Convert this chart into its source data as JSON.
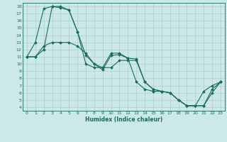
{
  "xlabel": "Humidex (Indice chaleur)",
  "xlim": [
    -0.5,
    23.5
  ],
  "ylim": [
    3.5,
    18.5
  ],
  "xticks": [
    0,
    1,
    2,
    3,
    4,
    5,
    6,
    7,
    8,
    9,
    10,
    11,
    12,
    13,
    14,
    15,
    16,
    17,
    18,
    19,
    20,
    21,
    22,
    23
  ],
  "yticks": [
    4,
    5,
    6,
    7,
    8,
    9,
    10,
    11,
    12,
    13,
    14,
    15,
    16,
    17,
    18
  ],
  "bg_color": "#cce8e8",
  "line_color": "#1a6b5a",
  "grid_color": "#aacfcf",
  "lines": [
    {
      "x": [
        0,
        1,
        2,
        3,
        4,
        5,
        6,
        7,
        8,
        9,
        10,
        11,
        12,
        13,
        14,
        15,
        16,
        17,
        18,
        19,
        20,
        21,
        22,
        23
      ],
      "y": [
        11,
        13,
        17.7,
        18,
        18,
        17.5,
        14.5,
        11.2,
        10,
        9.2,
        11.2,
        11.3,
        10.8,
        7.5,
        6.5,
        6.2,
        6.2,
        6.0,
        5.0,
        4.2,
        4.2,
        6.2,
        7.0,
        7.5
      ]
    },
    {
      "x": [
        0,
        1,
        2,
        3,
        4,
        5,
        6,
        7,
        8,
        9,
        10,
        11,
        12,
        13,
        14,
        15,
        16,
        17,
        18,
        19,
        20,
        21,
        22,
        23
      ],
      "y": [
        11,
        11,
        12.5,
        13,
        13,
        13,
        12.5,
        11.5,
        10,
        9.5,
        9.5,
        10.5,
        10.5,
        10.5,
        7.5,
        6.5,
        6.2,
        6.0,
        5.0,
        4.2,
        4.2,
        4.2,
        6.5,
        7.5
      ]
    },
    {
      "x": [
        0,
        1,
        2,
        3,
        4,
        5,
        6,
        7,
        8,
        9,
        10,
        11,
        12,
        13,
        14,
        15,
        16,
        17,
        18,
        19,
        20,
        21,
        22,
        23
      ],
      "y": [
        11,
        11,
        12.0,
        18,
        17.8,
        17.5,
        14.5,
        10.0,
        9.5,
        9.5,
        11.5,
        11.5,
        10.8,
        10.7,
        7.5,
        6.5,
        6.2,
        6.0,
        5.0,
        4.2,
        4.2,
        4.2,
        6.0,
        7.5
      ]
    }
  ]
}
